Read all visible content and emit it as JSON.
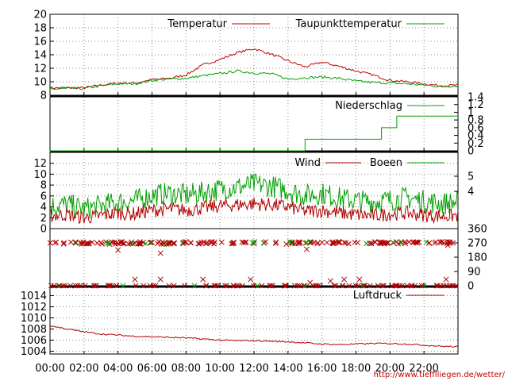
{
  "source_link": "http://www.tiefflliegen.de/wetter/",
  "time_axis": {
    "labels": [
      "00:00",
      "02:00",
      "04:00",
      "06:00",
      "08:00",
      "10:00",
      "12:00",
      "14:00",
      "16:00",
      "18:00",
      "20:00",
      "22:00"
    ],
    "range_hours": [
      0,
      24
    ]
  },
  "colors": {
    "temperatur": "#c00000",
    "taupunkt": "#00a000",
    "wind": "#b00000",
    "boeen": "#00a000",
    "niederschlag": "#00a000",
    "luftdruck": "#b00000"
  },
  "chart_data": [
    {
      "type": "line",
      "title": "",
      "ylim": [
        8,
        20
      ],
      "yticks": [
        "8",
        "10",
        "12",
        "14",
        "16",
        "18",
        "20"
      ],
      "x_hours": [
        0,
        1,
        2,
        3,
        4,
        5,
        6,
        7,
        8,
        9,
        10,
        11,
        12,
        13,
        14,
        15,
        16,
        17,
        18,
        19,
        20,
        21,
        22,
        23,
        24
      ],
      "series": [
        {
          "name": "Temperatur",
          "values": [
            9.1,
            9.1,
            9.1,
            9.5,
            9.8,
            9.8,
            10.3,
            10.5,
            11.0,
            12.5,
            13.3,
            14.3,
            14.9,
            14.1,
            13.1,
            12.2,
            12.9,
            12.3,
            11.6,
            11.0,
            10.2,
            10.0,
            9.7,
            9.4,
            9.5
          ]
        },
        {
          "name": "Taupunkttemperatur",
          "values": [
            8.9,
            9.0,
            9.0,
            9.4,
            9.7,
            9.7,
            10.2,
            10.4,
            10.5,
            10.9,
            11.2,
            11.6,
            11.3,
            11.2,
            10.4,
            10.6,
            10.7,
            10.5,
            10.1,
            9.9,
            9.8,
            9.7,
            9.5,
            9.3,
            9.4
          ]
        }
      ]
    },
    {
      "type": "line",
      "title": "",
      "ylim": [
        0,
        1.4
      ],
      "yticks": [
        "0",
        "0.2",
        "0.4",
        "0.6",
        "0.8",
        "1",
        "1.2",
        "1.4"
      ],
      "series": [
        {
          "name": "Niederschlag",
          "x_hours": [
            0,
            15.0,
            15.0,
            19.5,
            19.5,
            20.4,
            20.4,
            24
          ],
          "values": [
            0,
            0,
            0.3,
            0.3,
            0.6,
            0.6,
            0.9,
            0.9
          ]
        }
      ]
    },
    {
      "type": "line",
      "title": "",
      "ylim": [
        0,
        14
      ],
      "yticks_left": [
        "0",
        "2",
        "4",
        "6",
        "8",
        "10",
        "12"
      ],
      "yticks_right": [
        "4",
        "5"
      ],
      "x_hours": [
        0,
        1,
        2,
        3,
        4,
        5,
        6,
        7,
        8,
        9,
        10,
        11,
        12,
        13,
        14,
        15,
        16,
        17,
        18,
        19,
        20,
        21,
        22,
        23,
        24
      ],
      "series": [
        {
          "name": "Wind",
          "values": [
            2.0,
            2.2,
            1.6,
            2.0,
            2.5,
            2.3,
            3.0,
            3.2,
            3.0,
            3.4,
            3.8,
            4.0,
            4.2,
            4.0,
            3.6,
            2.8,
            3.0,
            2.5,
            2.2,
            2.0,
            2.3,
            2.5,
            2.1,
            1.9,
            2.0
          ]
        },
        {
          "name": "Boeen",
          "values": [
            3.5,
            3.8,
            3.0,
            3.6,
            4.2,
            4.5,
            5.5,
            5.8,
            5.5,
            6.0,
            6.6,
            7.0,
            7.5,
            7.2,
            6.4,
            5.5,
            5.8,
            5.0,
            4.5,
            4.3,
            4.6,
            5.0,
            4.4,
            4.0,
            4.2
          ]
        }
      ]
    },
    {
      "type": "scatter",
      "title": "",
      "ylim": [
        0,
        360
      ],
      "yticks": [
        "0",
        "90",
        "180",
        "270",
        "360"
      ],
      "series": [
        {
          "name": "",
          "x_hours": [
            0.3,
            0.8,
            1.5,
            2.2,
            3.0,
            3.5,
            4.2,
            4.8,
            5.3,
            6.0,
            6.7,
            7.3,
            8.0,
            8.8,
            9.5,
            10.1,
            10.8,
            11.4,
            12.0,
            12.6,
            13.3,
            13.9,
            14.6,
            15.3,
            16.0,
            16.7,
            17.4,
            18.1,
            18.8,
            19.5,
            20.2,
            20.9,
            21.6,
            22.3,
            23.0,
            23.7,
            4.0,
            6.5,
            15.1,
            23.4
          ],
          "values": [
            270,
            265,
            275,
            268,
            272,
            262,
            270,
            275,
            266,
            273,
            268,
            270,
            277,
            265,
            270,
            274,
            268,
            272,
            266,
            270,
            275,
            262,
            268,
            271,
            273,
            266,
            270,
            272,
            268,
            275,
            270,
            266,
            272,
            268,
            273,
            270,
            225,
            205,
            230,
            255
          ]
        },
        {
          "name": "",
          "x_hours": [
            0.5,
            1.5,
            2.7,
            3.5,
            4.3,
            5.5,
            6.2,
            7.0,
            8.5,
            9.2,
            10.4,
            11.0,
            12.2,
            13.0,
            13.8,
            14.4,
            15.0,
            15.8,
            16.8,
            17.6,
            18.4,
            19.3,
            20.1,
            21.3,
            22.0,
            22.8,
            23.3
          ],
          "values": [
            0,
            0,
            0,
            0,
            0,
            0,
            0,
            0,
            0,
            0,
            0,
            0,
            0,
            0,
            0,
            0,
            0,
            0,
            0,
            0,
            0,
            0,
            0,
            0,
            0,
            0,
            0
          ]
        },
        {
          "name": "",
          "x_hours": [
            5.0,
            6.5,
            9.0,
            11.8,
            15.3,
            16.5,
            17.3,
            18.2,
            23.3
          ],
          "values": [
            40,
            40,
            40,
            40,
            20,
            30,
            40,
            40,
            40
          ]
        }
      ]
    },
    {
      "type": "line",
      "title": "",
      "ylim": [
        1003.5,
        1015.5
      ],
      "yticks": [
        "1004",
        "1006",
        "1008",
        "1010",
        "1012",
        "1014"
      ],
      "x_hours": [
        0,
        1,
        2,
        3,
        4,
        5,
        6,
        7,
        8,
        9,
        10,
        11,
        12,
        13,
        14,
        15,
        16,
        17,
        18,
        19,
        20,
        21,
        22,
        23,
        24
      ],
      "series": [
        {
          "name": "Luftdruck",
          "values": [
            1008.6,
            1008.0,
            1007.5,
            1007.1,
            1006.9,
            1006.7,
            1006.6,
            1006.5,
            1006.4,
            1006.2,
            1006.0,
            1005.9,
            1005.9,
            1005.8,
            1005.7,
            1005.5,
            1005.3,
            1005.2,
            1005.3,
            1005.4,
            1005.4,
            1005.3,
            1005.1,
            1004.9,
            1004.8
          ]
        }
      ]
    }
  ]
}
